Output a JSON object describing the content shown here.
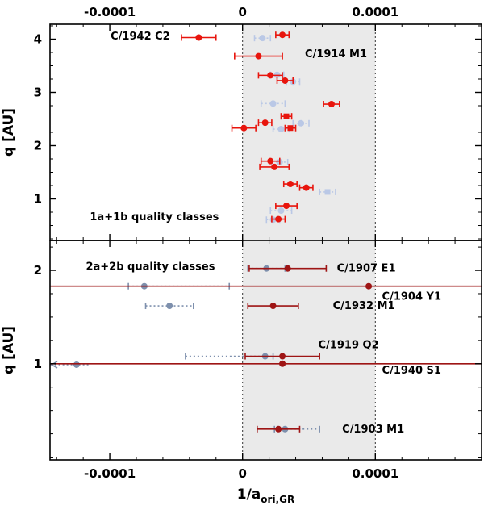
{
  "chart_data": {
    "type": "scatter",
    "title": "",
    "xlabel_prefix": "1/a",
    "xlabel_subscript": "ori,GR",
    "ylabel": "q [AU]",
    "x_tick_labels": [
      "-0.0001",
      "0",
      "0.0001"
    ],
    "x_tick_values": [
      -0.0001,
      0,
      0.0001
    ],
    "xlim": [
      -0.000145,
      0.00018
    ],
    "grid": false,
    "legend": "none",
    "shaded_region": {
      "from": 0,
      "to": 0.0001,
      "color": "#eaeaea"
    },
    "vlines": [
      0,
      0.0001
    ],
    "panels": [
      {
        "label": "1a+1b quality classes",
        "label_pos": {
          "x": -0.000115,
          "y": 0.66
        },
        "ylim": [
          0.22,
          4.28
        ],
        "y_ticks": [
          1,
          2,
          3,
          4
        ],
        "series": [
          {
            "name": "light-blue",
            "color": "#bac8e6",
            "style": "dotted",
            "points": [
              {
                "x": 1.5e-05,
                "y": 4.02,
                "xerr": 6e-06
              },
              {
                "x": 2.6e-05,
                "y": 3.33,
                "xerr": 5e-06
              },
              {
                "x": 3.8e-05,
                "y": 3.2,
                "xerr": 5e-06
              },
              {
                "x": 2.3e-05,
                "y": 2.79,
                "xerr": 9e-06
              },
              {
                "x": 4.4e-05,
                "y": 2.42,
                "xerr": 6e-06
              },
              {
                "x": 2.9e-05,
                "y": 2.31,
                "xerr": 6e-06
              },
              {
                "x": 2.8e-05,
                "y": 1.69,
                "xerr": 6e-06
              },
              {
                "x": 6.4e-05,
                "y": 1.13,
                "xerr": 6e-06,
                "marker": "square"
              },
              {
                "x": 2.9e-05,
                "y": 0.78,
                "xerr": 8e-06
              },
              {
                "x": 2.3e-05,
                "y": 0.61,
                "xerr": 5e-06
              }
            ]
          },
          {
            "name": "red",
            "color": "#e8150d",
            "style": "solid",
            "points": [
              {
                "x": -3.3e-05,
                "y": 4.03,
                "xerr": 1.3e-05
              },
              {
                "x": 3e-05,
                "y": 4.08,
                "xerr": 5e-06
              },
              {
                "x": 1.2e-05,
                "y": 3.68,
                "xerr": 1.8e-05
              },
              {
                "x": 2.1e-05,
                "y": 3.32,
                "xerr": 9e-06
              },
              {
                "x": 3.2e-05,
                "y": 3.22,
                "xerr": 6e-06
              },
              {
                "x": 6.7e-05,
                "y": 2.78,
                "xerr": 6e-06
              },
              {
                "x": 3.3e-05,
                "y": 2.55,
                "xerr": 4e-06,
                "marker": "square"
              },
              {
                "x": 1.7e-05,
                "y": 2.43,
                "xerr": 5e-06
              },
              {
                "x": 1e-06,
                "y": 2.33,
                "xerr": 9e-06
              },
              {
                "x": 3.6e-05,
                "y": 2.33,
                "xerr": 4e-06,
                "marker": "square"
              },
              {
                "x": 2.1e-05,
                "y": 1.71,
                "xerr": 7e-06
              },
              {
                "x": 2.4e-05,
                "y": 1.6,
                "xerr": 1.1e-05
              },
              {
                "x": 3.6e-05,
                "y": 1.28,
                "xerr": 5e-06
              },
              {
                "x": 4.8e-05,
                "y": 1.21,
                "xerr": 5e-06
              },
              {
                "x": 3.3e-05,
                "y": 0.87,
                "xerr": 8e-06
              },
              {
                "x": 2.7e-05,
                "y": 0.62,
                "xerr": 5e-06
              }
            ]
          }
        ],
        "annotations": [
          {
            "text": "C/1942 C2",
            "x": -7.7e-05,
            "y": 4.05,
            "anchor": "middle"
          },
          {
            "text": "C/1914 M1",
            "x": 4.7e-05,
            "y": 3.72,
            "anchor": "start"
          }
        ]
      },
      {
        "label": "2a+2b quality classes",
        "label_pos": {
          "x": -0.000118,
          "y": 2.04
        },
        "ylim": [
          -0.03,
          2.32
        ],
        "y_ticks": [
          1,
          2
        ],
        "series": [
          {
            "name": "slate-blue",
            "color": "#7e90ad",
            "style": "dotted",
            "points": [
              {
                "x": 1.8e-05,
                "y": 2.02,
                "xerr": 1.4e-05
              },
              {
                "x": -7.4e-05,
                "y": 1.83,
                "xerr_lo": 1.2e-05,
                "xerr_hi": 6.4e-05
              },
              {
                "x": -5.5e-05,
                "y": 1.62,
                "xerr": 1.8e-05
              },
              {
                "x": 1.7e-05,
                "y": 1.08,
                "xerr_lo": 6e-05,
                "xerr_hi": 6e-06
              },
              {
                "x": -0.000125,
                "y": 0.99,
                "xerr_lo": 5e-05,
                "xerr_hi": 1e-05,
                "arrow": "left",
                "clip": true
              },
              {
                "x": 3.2e-05,
                "y": 0.3,
                "xerr_lo": 8e-06,
                "xerr_hi": 2.6e-05
              }
            ]
          },
          {
            "name": "dark-red",
            "color": "#9e1515",
            "style": "solid",
            "points": [
              {
                "x": 3.4e-05,
                "y": 2.02,
                "xerr": 2.9e-05
              },
              {
                "x": 9.5e-05,
                "y": 1.83,
                "xerr": 0.00025,
                "clip": true
              },
              {
                "x": 2.3e-05,
                "y": 1.62,
                "xerr": 1.9e-05
              },
              {
                "x": 3e-05,
                "y": 1.08,
                "xerr": 2.8e-05
              },
              {
                "x": 3e-05,
                "y": 1.0,
                "xerr": 0.0003,
                "clip": true
              },
              {
                "x": 2.7e-05,
                "y": 0.3,
                "xerr": 1.6e-05
              }
            ]
          }
        ],
        "annotations": [
          {
            "text": "C/1907 E1",
            "x": 7.1e-05,
            "y": 2.02,
            "anchor": "start"
          },
          {
            "text": "C/1904 Y1",
            "x": 0.000105,
            "y": 1.72,
            "anchor": "start"
          },
          {
            "text": "C/1932 M1",
            "x": 6.8e-05,
            "y": 1.62,
            "anchor": "start"
          },
          {
            "text": "C/1919 Q2",
            "x": 5.7e-05,
            "y": 1.2,
            "anchor": "start"
          },
          {
            "text": "C/1940 S1",
            "x": 0.000105,
            "y": 0.93,
            "anchor": "start"
          },
          {
            "text": "C/1903 M1",
            "x": 7.5e-05,
            "y": 0.3,
            "anchor": "start"
          }
        ]
      }
    ]
  }
}
